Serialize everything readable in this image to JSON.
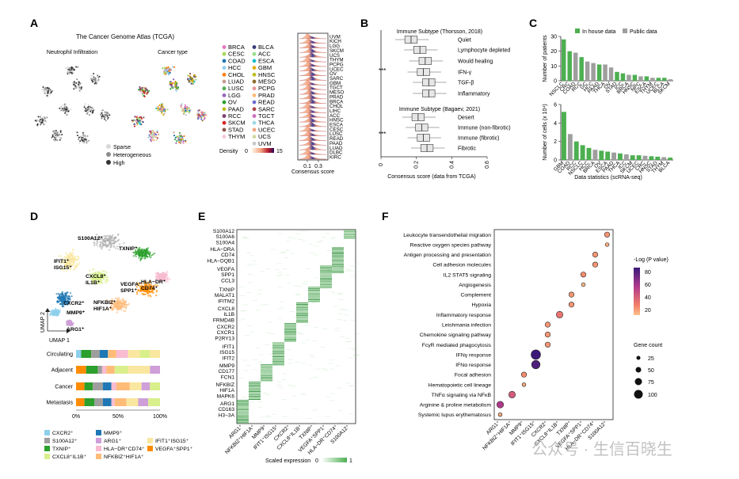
{
  "panels": {
    "a": "A",
    "b": "B",
    "c": "C",
    "d": "D",
    "e": "E",
    "f": "F"
  },
  "panel_a": {
    "title": "The Cancer Genome Atlas (TCGA)",
    "left_title": "Neutrophil Infiltration",
    "right_title": "Cancer type",
    "legend_infiltration": [
      "Sparse",
      "Heterogeneous",
      "High"
    ],
    "cancer_types_col1": [
      "BRCA",
      "CESC",
      "COAD",
      "HCC",
      "CHOL",
      "LUAD",
      "LUSC",
      "LGG",
      "OV",
      "PAAD",
      "RCC",
      "SKCM",
      "STAD",
      "THYM"
    ],
    "cancer_types_col2": [
      "BLCA",
      "ACC",
      "ESCA",
      "GBM",
      "HNSC",
      "MESO",
      "PCPG",
      "PRAD",
      "READ",
      "SARC",
      "TGCT",
      "THCA",
      "UCEC",
      "UCS",
      "UVM"
    ],
    "type_colors_col1": [
      "#e377c2",
      "#a6d854",
      "#1f77b4",
      "#8ed0ec",
      "#ff7f0e",
      "#c49c94",
      "#4caf50",
      "#9467bd",
      "#2ca02c",
      "#bcbd22",
      "#7b4173",
      "#d62728",
      "#8c564b",
      "#f7c6d9"
    ],
    "type_colors_col2": [
      "#393b79",
      "#98df8a",
      "#17becf",
      "#e6ab02",
      "#bcbd22",
      "#8c6d31",
      "#e7969c",
      "#ffbb78",
      "#6b6ecf",
      "#ad494a",
      "#ce6dbd",
      "#9edae5",
      "#f4a582",
      "#cedb9c",
      "#c7c7c7"
    ],
    "density_label": "Density",
    "density_min": "0",
    "density_max": "15",
    "consensus_label": "Consensus score",
    "consensus_ticks": [
      "0.1",
      "0.3"
    ],
    "ridge_labels": [
      "UVM",
      "KICH",
      "LGG",
      "SKCM",
      "UCS",
      "THYM",
      "PCPG",
      "UCEC",
      "OV",
      "SARC",
      "GBM",
      "TGCT",
      "MESO",
      "PRAD",
      "BRCA",
      "CHOL",
      "LIHC",
      "ACC",
      "HNSC",
      "ESCA",
      "CESC",
      "LUSC",
      "READ",
      "PAAD",
      "LUAD",
      "DLBC",
      "KIRC"
    ]
  },
  "panel_b": {
    "group1_title": "Immune Subtype (Thorsson, 2018)",
    "group1": [
      "Quiet",
      "Lymphocyte depleted",
      "Would healing",
      "IFN-γ",
      "TGF-β",
      "Inflammatory"
    ],
    "group2_title": "Immune Subtype (Bagaev, 2021)",
    "group2": [
      "Desert",
      "Immune (non-fibrotic)",
      "Immune (fibrotic)",
      "Fibrotic"
    ],
    "sig": "***",
    "xlabel": "Consensus score (data from TCGA)",
    "xticks": [
      "0",
      "0.2",
      "0.4",
      "0.6"
    ]
  },
  "panel_c": {
    "legend": [
      "In house data",
      "Public data"
    ],
    "colors": {
      "inhouse": "#4caf50",
      "public": "#9e9e9e"
    },
    "top_ylabel": "Number of patients",
    "bottom_ylabel": "Number of cells (x 10⁴)",
    "xlabel": "Data statistics (scRNA-seq)"
  },
  "panel_d": {
    "umap_labels": [
      "S100A12⁺",
      "TXNIP⁺",
      "IFIT1⁺ ISG15⁺",
      "CXCL8⁺ IL1B⁺",
      "HLA−DR⁺ CD74⁺",
      "VEGFA⁺ SPP1⁺",
      "NFKBIZ⁺ HIF1A⁺",
      "CXCR2⁺",
      "MMP9⁺",
      "ARG1⁺"
    ],
    "axis_y": "UMAP 2",
    "axis_x": "UMAP 1",
    "bar_rows": [
      "Circulating",
      "Adjacent",
      "Cancer",
      "Metastasis"
    ],
    "bar_ticks": [
      "0%",
      "50%",
      "100%"
    ],
    "legend": [
      "CXCR2⁺",
      "S100A12⁺",
      "TXNIP⁺",
      "CXCL8⁺IL1B⁺",
      "MMP9⁺",
      "ARG1⁺",
      "HLA−DR⁺CD74⁺",
      "NFKBIZ⁺HIF1A⁺",
      "",
      "IFIT1⁺ISG15⁺",
      "VEGFA⁺SPP1⁺",
      ""
    ],
    "legend_colors": [
      "#8ed0ec",
      "#9e9e9e",
      "#2ca02c",
      "#d9ef8b",
      "#1f77b4",
      "#ce9fd8",
      "#f8bbd0",
      "#ffbb78",
      "",
      "#f9e79f",
      "#ff8c00",
      ""
    ]
  },
  "panel_e": {
    "gene_groups": [
      [
        "S100A12",
        "S100A6",
        "S100A4"
      ],
      [
        "HLA−DRA",
        "CD74",
        "HLA−DQB1"
      ],
      [
        "VEGFA",
        "SPP1",
        "CCL3"
      ],
      [
        "TXNIP",
        "MALAT1",
        "IFITM2"
      ],
      [
        "CXCL8",
        "IL1B",
        "FRMD4B"
      ],
      [
        "CXCR2",
        "CXCR1",
        "P2RY13"
      ],
      [
        "IFIT1",
        "ISG15",
        "IFIT2"
      ],
      [
        "MMP9",
        "CD177",
        "FCN1"
      ],
      [
        "NFKBIZ",
        "HIF1A",
        "MAPK6"
      ],
      [
        "ARG1",
        "CD163",
        "H3−3A"
      ]
    ],
    "clusters": [
      "ARG1⁺",
      "NFKBIZ⁺HIF1A⁺",
      "MMP9⁺",
      "IFIT1⁺ISG15⁺",
      "CXCR2⁺",
      "CXCL8⁺IL1B⁺",
      "TXNIP⁺",
      "VEGFA⁺SPP1⁺",
      "HLA−DR⁺CD74⁺",
      "S100A12⁺"
    ],
    "scale_label": "Scaled expression",
    "scale_min": "0",
    "scale_max": "1"
  },
  "panel_f": {
    "pathways": [
      "Leukocyte transendothelial migration",
      "Reactive oxygen species pathway",
      "Antigen processing and presentation",
      "Cell adhesion molecules",
      "IL2 STAT5 signaling",
      "Angiogenesis",
      "Complement",
      "Hypoxia",
      "Inflammatory response",
      "Leishmania infection",
      "Chemokine signaling pathway",
      "FcγR mediated phagocytosis",
      "IFNγ response",
      "IFNα response",
      "Focal adhesion",
      "Hematopoietic cell lineage",
      "TNFα signaling via NFκB",
      "Arginine & proline metabolism",
      "Systemic lupus erythematosus"
    ],
    "clusters": [
      "ARG1⁺",
      "NFKBIZ⁺HIF1A⁺",
      "MMP9⁺",
      "IFIT1⁺ISG15⁺",
      "CXCR2⁺",
      "CXCL8⁺IL1B⁺",
      "TXNIP⁺",
      "VEGFA⁺SPP1⁺",
      "HLA−DR⁺CD74⁺",
      "S100A12⁺"
    ],
    "color_title": "-Log (P value)",
    "color_ticks": [
      "80",
      "60",
      "40",
      "20"
    ],
    "size_title": "Gene count",
    "size_ticks": [
      "25",
      "50",
      "75",
      "100"
    ]
  },
  "watermark": "公众号 · 生信百晓生",
  "chart_data": [
    {
      "type": "bar",
      "title": "",
      "xlabel": "",
      "ylabel": "Number of patients",
      "categories": [
        "NSCLC",
        "CRC",
        "COAD",
        "RCC",
        "GC",
        "HCC",
        "PAAD",
        "THCA",
        "OV",
        "STAD",
        "ICC",
        "BRCA",
        "HNSC",
        "NPC",
        "ESCA",
        "THYM",
        "UCEC",
        "BLCA",
        "SKCM"
      ],
      "values": [
        28,
        20,
        19,
        16,
        13,
        12,
        11,
        11,
        9,
        6,
        5,
        4,
        4,
        3,
        3,
        2,
        2,
        2,
        1
      ],
      "source": [
        "inhouse",
        "inhouse",
        "public",
        "inhouse",
        "public",
        "public",
        "inhouse",
        "public",
        "public",
        "inhouse",
        "inhouse",
        "public",
        "inhouse",
        "public",
        "inhouse",
        "public",
        "inhouse",
        "inhouse",
        "public"
      ],
      "ylim": [
        0,
        30
      ]
    },
    {
      "type": "bar",
      "title": "",
      "xlabel": "Data statistics (scRNA-seq)",
      "ylabel": "Number of cells (x 10⁴)",
      "categories": [
        "GBM",
        "COAD",
        "RCC",
        "NSCLC",
        "HCC",
        "BRCA",
        "OV",
        "ESCA",
        "PAAD",
        "THCA",
        "ICC",
        "SKCM",
        "UCEC",
        "CRC",
        "HNSC",
        "STAD",
        "THYM",
        "BLCA"
      ],
      "values": [
        5.2,
        2.8,
        2.0,
        1.6,
        1.3,
        1.1,
        1.0,
        0.9,
        0.8,
        0.7,
        0.6,
        0.5,
        0.5,
        0.45,
        0.4,
        0.35,
        0.3,
        0.25
      ],
      "source": [
        "inhouse",
        "public",
        "inhouse",
        "inhouse",
        "inhouse",
        "public",
        "inhouse",
        "inhouse",
        "public",
        "inhouse",
        "public",
        "inhouse",
        "inhouse",
        "public",
        "inhouse",
        "inhouse",
        "public",
        "inhouse"
      ],
      "ylim": [
        0,
        6
      ]
    },
    {
      "type": "bar",
      "title": "Immune Subtype boxplots",
      "xlabel": "Consensus score (data from TCGA)",
      "categories": [
        "Quiet",
        "Lymphocyte depleted",
        "Would healing",
        "IFN-γ",
        "TGF-β",
        "Inflammatory",
        "Desert",
        "Immune (non-fibrotic)",
        "Immune (fibrotic)",
        "Fibrotic"
      ],
      "values": [
        0.17,
        0.22,
        0.25,
        0.24,
        0.27,
        0.27,
        0.21,
        0.23,
        0.24,
        0.26
      ],
      "xlim": [
        0,
        0.6
      ]
    },
    {
      "type": "bar",
      "title": "Composition",
      "categories": [
        "Circulating",
        "Adjacent",
        "Cancer",
        "Metastasis"
      ],
      "series": [
        {
          "name": "CXCR2⁺",
          "values": [
            0.06,
            0.0,
            0.0,
            0.0
          ]
        },
        {
          "name": "CXCL8⁺IL1B⁺",
          "values": [
            0.12,
            0.14,
            0.1,
            0.12
          ]
        },
        {
          "name": "TXNIP⁺",
          "values": [
            0.1,
            0.05,
            0.1,
            0.1
          ]
        },
        {
          "name": "S100A12⁺",
          "values": [
            0.1,
            0.1,
            0.12,
            0.1
          ]
        },
        {
          "name": "MMP9⁺",
          "values": [
            0.1,
            0.05,
            0.06,
            0.04
          ]
        },
        {
          "name": "HLA−DR⁺CD74⁺",
          "values": [
            0.12,
            0.12,
            0.14,
            0.14
          ]
        },
        {
          "name": "NFKBIZ⁺HIF1A⁺",
          "values": [
            0.14,
            0.16,
            0.16,
            0.14
          ]
        },
        {
          "name": "IFIT1⁺ISG15⁺",
          "values": [
            0.14,
            0.14,
            0.1,
            0.12
          ]
        },
        {
          "name": "ARG1⁺",
          "values": [
            0.12,
            0.12,
            0.12,
            0.14
          ]
        },
        {
          "name": "VEGFA⁺SPP1⁺",
          "values": [
            0.0,
            0.12,
            0.1,
            0.1
          ]
        }
      ]
    },
    {
      "type": "scatter",
      "title": "Pathway enrichment",
      "x": [
        9,
        9,
        8,
        8,
        7,
        7,
        6,
        6,
        5,
        4,
        4,
        4,
        3,
        3,
        2,
        2,
        1,
        0,
        0
      ],
      "y": [
        "Leukocyte transendothelial migration",
        "Reactive oxygen species pathway",
        "Antigen processing and presentation",
        "Cell adhesion molecules",
        "IL2 STAT5 signaling",
        "Angiogenesis",
        "Complement",
        "Hypoxia",
        "Inflammatory response",
        "Leishmania infection",
        "Chemokine signaling pathway",
        "FcγR mediated phagocytosis",
        "IFNγ response",
        "IFNα response",
        "Focal adhesion",
        "Hematopoietic cell lineage",
        "TNFα signaling via NFκB",
        "Arginine & proline metabolism",
        "Systemic lupus erythematosus"
      ],
      "neglogp": [
        20,
        10,
        20,
        20,
        25,
        5,
        20,
        20,
        35,
        20,
        20,
        20,
        90,
        85,
        25,
        10,
        45,
        60,
        10
      ],
      "gene_count": [
        40,
        20,
        40,
        40,
        40,
        20,
        40,
        40,
        60,
        40,
        40,
        40,
        100,
        85,
        40,
        20,
        60,
        60,
        20
      ]
    }
  ]
}
